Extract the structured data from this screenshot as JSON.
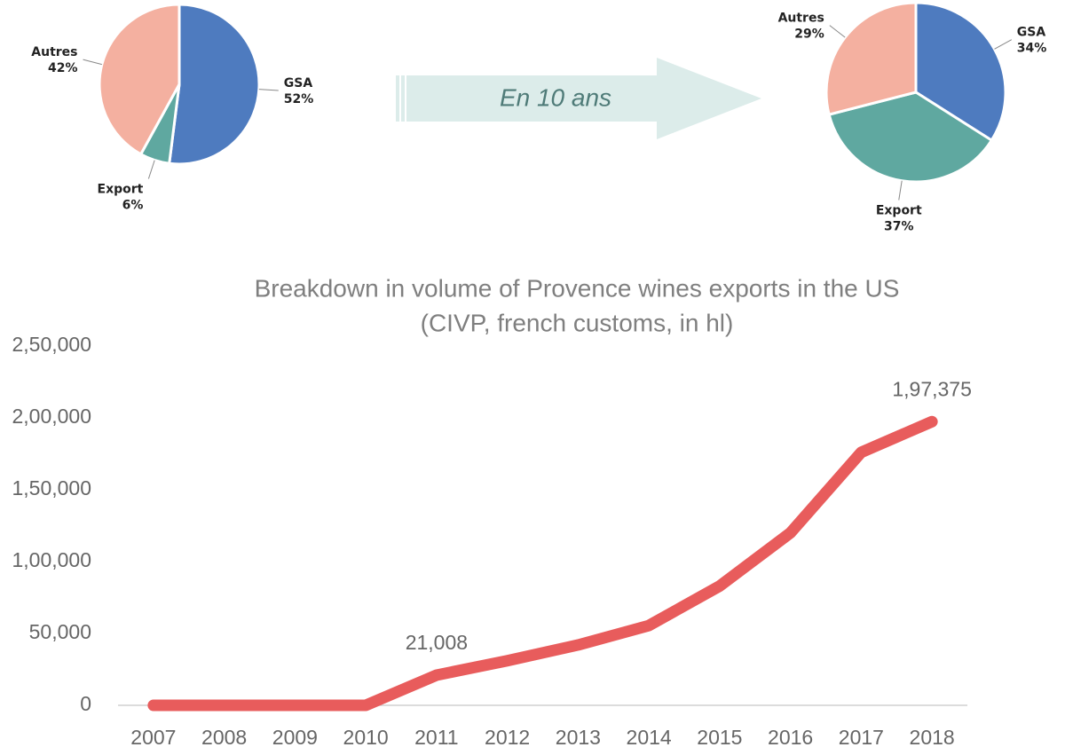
{
  "arrow_label": "En 10 ans",
  "chart_data": [
    {
      "type": "pie",
      "categories": [
        "GSA",
        "Export",
        "Autres"
      ],
      "values": [
        52,
        6,
        42
      ],
      "value_labels": [
        "52%",
        "6%",
        "42%"
      ],
      "colors": [
        "#4e7bbf",
        "#5fa8a0",
        "#f4b0a0"
      ]
    },
    {
      "type": "pie",
      "categories": [
        "GSA",
        "Export",
        "Autres"
      ],
      "values": [
        34,
        37,
        29
      ],
      "value_labels": [
        "34%",
        "37%",
        "29%"
      ],
      "colors": [
        "#4e7bbf",
        "#5fa8a0",
        "#f4b0a0"
      ]
    },
    {
      "type": "line",
      "title": "Breakdown in volume of Provence wines exports in the US",
      "subtitle": "(CIVP, french customs, in hl)",
      "categories": [
        "2007",
        "2008",
        "2009",
        "2010",
        "2011",
        "2012",
        "2013",
        "2014",
        "2015",
        "2016",
        "2017",
        "2018"
      ],
      "values": [
        0,
        0,
        0,
        0,
        21008,
        31000,
        42000,
        55500,
        83000,
        120000,
        176000,
        197375
      ],
      "value_labels": [
        null,
        null,
        null,
        null,
        "21,008",
        null,
        null,
        null,
        null,
        null,
        null,
        "1,97,375"
      ],
      "color": "#e85c5c",
      "ylim": [
        0,
        250000
      ],
      "yticks": [
        0,
        {
          "value": 50000,
          "label": "50,000"
        },
        {
          "value": 100000,
          "label": "1,00,000"
        },
        {
          "value": 150000,
          "label": "1,50,000"
        },
        {
          "value": 200000,
          "label": "2,00,000"
        },
        {
          "value": 250000,
          "label": "2,50,000"
        }
      ]
    }
  ]
}
